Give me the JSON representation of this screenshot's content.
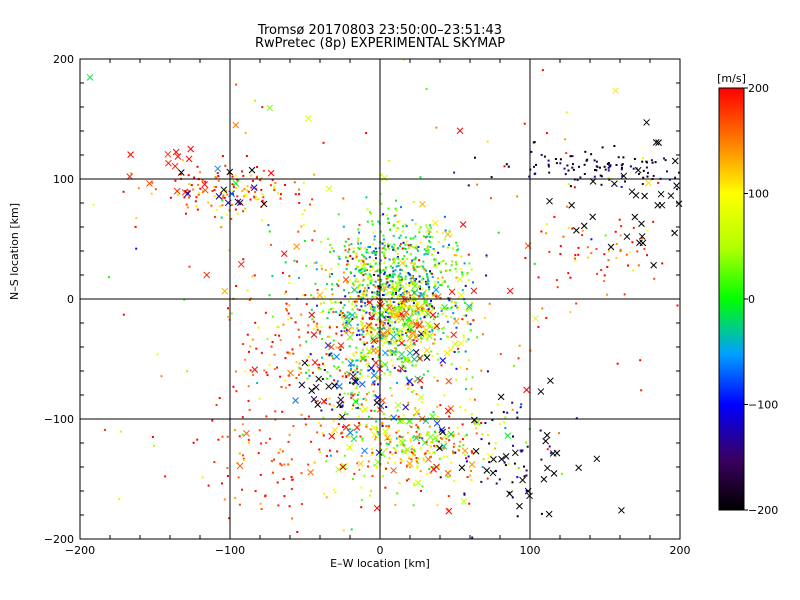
{
  "chart_data": {
    "type": "scatter",
    "title": "Tromsø 20170803 23:50:00–23:51:43",
    "subtitle": "RwPretec (8p) EXPERIMENTAL SKYMAP",
    "xlabel": "E–W location [km]",
    "ylabel": "N–S location [km]",
    "xlim": [
      -200,
      200
    ],
    "ylim": [
      -200,
      200
    ],
    "xticks": [
      "−200",
      "−100",
      "0",
      "100",
      "200"
    ],
    "yticks": [
      "−200",
      "−100",
      "0",
      "100",
      "200"
    ],
    "grid": true,
    "colorbar": {
      "label": "[m/s]",
      "range": [
        -200,
        200
      ],
      "ticks": [
        "200",
        "100",
        "0",
        "−100",
        "−200"
      ],
      "colormap": "black-purple-blue-cyan-green-yellow-orange-red"
    },
    "marker_types": [
      "dot",
      "x"
    ],
    "clusters": [
      {
        "center": [
          10,
          -10
        ],
        "spread": [
          25,
          30
        ],
        "count": 900,
        "value_mean": 40,
        "value_sd": 90,
        "marker": "dot"
      },
      {
        "center": [
          10,
          30
        ],
        "spread": [
          20,
          25
        ],
        "count": 350,
        "value_mean": 10,
        "value_sd": 60,
        "marker": "dot"
      },
      {
        "center": [
          20,
          -120
        ],
        "spread": [
          30,
          20
        ],
        "count": 300,
        "value_mean": 110,
        "value_sd": 70,
        "marker": "dot"
      },
      {
        "center": [
          -100,
          90
        ],
        "spread": [
          25,
          12
        ],
        "count": 150,
        "value_mean": 160,
        "value_sd": 60,
        "marker": "dot"
      },
      {
        "center": [
          150,
          110
        ],
        "spread": [
          35,
          8
        ],
        "count": 110,
        "value_mean": -180,
        "value_sd": 30,
        "marker": "dot"
      },
      {
        "center": [
          150,
          40
        ],
        "spread": [
          25,
          20
        ],
        "count": 60,
        "value_mean": 170,
        "value_sd": 40,
        "marker": "dot"
      },
      {
        "center": [
          -60,
          -40
        ],
        "spread": [
          25,
          40
        ],
        "count": 120,
        "value_mean": 170,
        "value_sd": 40,
        "marker": "dot"
      },
      {
        "center": [
          -20,
          -70
        ],
        "spread": [
          12,
          20
        ],
        "count": 120,
        "value_mean": 0,
        "value_sd": 120,
        "marker": "dot"
      },
      {
        "center": [
          80,
          -130
        ],
        "spread": [
          20,
          25
        ],
        "count": 50,
        "value_mean": -150,
        "value_sd": 60,
        "marker": "dot"
      },
      {
        "center": [
          -80,
          -130
        ],
        "spread": [
          25,
          30
        ],
        "count": 80,
        "value_mean": 180,
        "value_sd": 30,
        "marker": "dot"
      },
      {
        "center": [
          0,
          0
        ],
        "spread": [
          110,
          110
        ],
        "count": 160,
        "value_mean": 120,
        "value_sd": 110,
        "marker": "dot"
      }
    ],
    "x_markers": [
      {
        "center": [
          15,
          -20
        ],
        "spread": [
          25,
          20
        ],
        "count": 120,
        "value_mean": 90,
        "value_sd": 110
      },
      {
        "center": [
          20,
          -120
        ],
        "spread": [
          30,
          20
        ],
        "count": 60,
        "value_mean": 80,
        "value_sd": 100
      },
      {
        "center": [
          -140,
          105
        ],
        "spread": [
          10,
          10
        ],
        "count": 12,
        "value_mean": 190,
        "value_sd": 10
      },
      {
        "center": [
          -100,
          90
        ],
        "spread": [
          20,
          15
        ],
        "count": 14,
        "value_mean": -160,
        "value_sd": 60
      },
      {
        "center": [
          170,
          80
        ],
        "spread": [
          25,
          30
        ],
        "count": 35,
        "value_mean": -200,
        "value_sd": 5
      },
      {
        "center": [
          90,
          -130
        ],
        "spread": [
          25,
          30
        ],
        "count": 30,
        "value_mean": -200,
        "value_sd": 5
      },
      {
        "center": [
          -30,
          -70
        ],
        "spread": [
          15,
          20
        ],
        "count": 25,
        "value_mean": -150,
        "value_sd": 80
      },
      {
        "center": [
          0,
          0
        ],
        "spread": [
          100,
          100
        ],
        "count": 50,
        "value_mean": 150,
        "value_sd": 90
      }
    ]
  }
}
